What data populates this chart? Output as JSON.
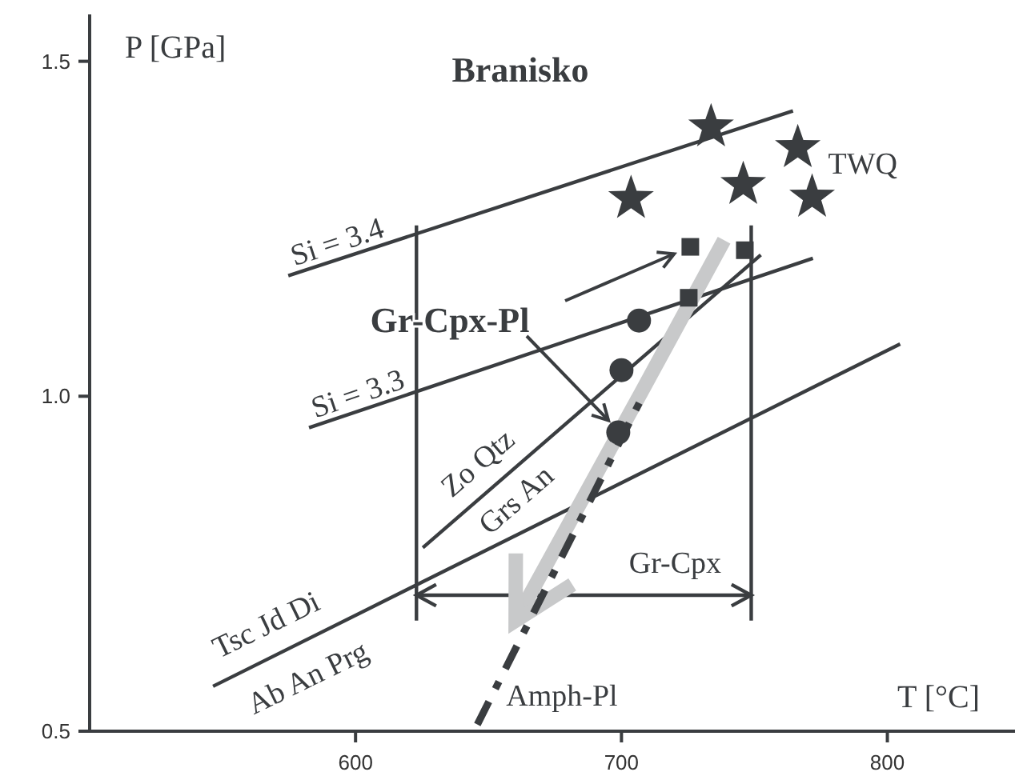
{
  "chart_data": {
    "type": "line",
    "title": "Branisko",
    "xlabel": "T [°C]",
    "ylabel": "P [GPa]",
    "xlim": [
      500,
      848
    ],
    "ylim": [
      0.5,
      1.57
    ],
    "xticks": [
      600,
      700,
      800
    ],
    "yticks": [
      {
        "value": 0.5,
        "label": "0.5"
      },
      {
        "value": 1,
        "label": "1.0"
      },
      {
        "value": 1.5,
        "label": "1.5"
      }
    ],
    "series": [
      {
        "name": "Si = 3.4",
        "color": "#3a3d40",
        "x": [
          574.7,
          764.5
        ],
        "values": [
          1.18,
          1.426
        ]
      },
      {
        "name": "Si = 3.3",
        "color": "#3a3d40",
        "x": [
          582.5,
          772
        ],
        "values": [
          0.953,
          1.206
        ]
      },
      {
        "color": "#3a3d40",
        "x": [
          625.3,
          752.4
        ],
        "values": [
          0.774,
          1.211
        ]
      },
      {
        "color": "#3a3d40",
        "x": [
          546.4,
          804.8
        ],
        "values": [
          0.567,
          1.078
        ]
      },
      {
        "color": "#3a3d40",
        "x": [
          622.9,
          622.9
        ],
        "values": [
          0.665,
          1.255
        ]
      },
      {
        "color": "#3a3d40",
        "x": [
          748.8,
          748.8
        ],
        "values": [
          0.665,
          1.255
        ]
      },
      {
        "name": "Gr-Cpx",
        "color": "#3a3d40",
        "x": [
          622.9,
          748.8
        ],
        "values": [
          0.703,
          0.703
        ]
      },
      {
        "color": "#c8c9ca",
        "x": [
          738.6,
          707.2,
          660.2
        ],
        "values": [
          1.233,
          1.004,
          0.665
        ]
      },
      {
        "name": "Amph-Pl",
        "color": "#3a3d40",
        "line_style": "dashed",
        "x": [
          645.8,
          707.2
        ],
        "values": [
          0.51,
          0.994
        ]
      },
      {
        "name": "TWQ",
        "type": "scatter",
        "color": "#3a3d40",
        "marker": "star",
        "x": [
          733.7,
          703.6,
          745.8,
          766.3,
          771.7
        ],
        "values": [
          1.402,
          1.295,
          1.316,
          1.371,
          1.297
        ]
      },
      {
        "type": "scatter",
        "color": "#3a3d40",
        "marker": "square",
        "x": [
          725.9,
          746.4,
          725.3
        ],
        "values": [
          1.223,
          1.218,
          1.147
        ]
      },
      {
        "type": "scatter",
        "color": "#3a3d40",
        "marker": "circle",
        "x": [
          698.8,
          700,
          706.6
        ],
        "values": [
          0.946,
          1.039,
          1.113
        ]
      }
    ],
    "annotations": [
      {
        "text": "Gr-Cpx-Pl",
        "x": 695.1,
        "y": 0.964
      },
      "Zo Qtz",
      "Grs An",
      "Tsc Jd Di",
      "Ab An Prg"
    ]
  }
}
